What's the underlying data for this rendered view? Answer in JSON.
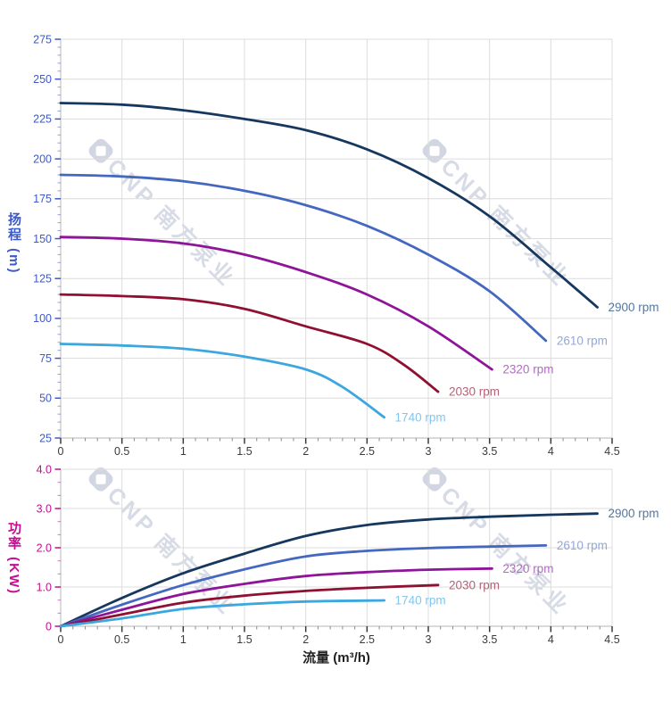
{
  "axis_titles": {
    "head_y": "扬程 (m)",
    "power_y": "功率 (KW)",
    "x": "流量 (m³/h)"
  },
  "watermark": {
    "text": "CNP 南方泵业"
  },
  "colors": {
    "grid": "#dcdcdc",
    "axis_line": "#c4c4c4",
    "x_tick": "#3a3a3a",
    "head_axis": "#3d5ac8",
    "power_axis": "#c30d92"
  },
  "chart_data": [
    {
      "type": "line",
      "ylabel": "扬程 (m)",
      "xlim": [
        0,
        4.5
      ],
      "ylim": [
        25,
        275
      ],
      "grid": true,
      "legend_position": "right-of-curve-end",
      "axis_color": "#3d5ac8",
      "x_minor_step": 0.1,
      "y_minor_step": 5,
      "x_ticks": {
        "values": [
          0,
          0.5,
          1,
          1.5,
          2,
          2.5,
          3,
          3.5,
          4,
          4.5
        ],
        "labels": [
          "0",
          "0.5",
          "1",
          "1.5",
          "2",
          "2.5",
          "3",
          "3.5",
          "4",
          "4.5"
        ]
      },
      "y_ticks": {
        "values": [
          25,
          50,
          75,
          100,
          125,
          150,
          175,
          200,
          225,
          250,
          275
        ],
        "labels": [
          "25",
          "50",
          "75",
          "100",
          "125",
          "150",
          "175",
          "200",
          "225",
          "250",
          "275"
        ]
      },
      "series": [
        {
          "name": "2900 rpm",
          "color": "#16375e",
          "label_color": "#53779f",
          "points": [
            [
              0,
              235
            ],
            [
              0.5,
              234
            ],
            [
              1,
              230.5
            ],
            [
              1.5,
              225
            ],
            [
              2,
              218
            ],
            [
              2.5,
              206
            ],
            [
              3,
              188
            ],
            [
              3.5,
              164
            ],
            [
              4,
              132
            ],
            [
              4.38,
              107
            ]
          ]
        },
        {
          "name": "2610 rpm",
          "color": "#4467bf",
          "label_color": "#92a7dd",
          "points": [
            [
              0,
              190
            ],
            [
              0.5,
              189
            ],
            [
              1,
              186
            ],
            [
              1.5,
              180
            ],
            [
              2,
              171
            ],
            [
              2.5,
              158
            ],
            [
              3,
              140
            ],
            [
              3.5,
              117
            ],
            [
              3.96,
              86
            ]
          ]
        },
        {
          "name": "2320 rpm",
          "color": "#8e1498",
          "label_color": "#b369c4",
          "points": [
            [
              0,
              151
            ],
            [
              0.5,
              150
            ],
            [
              1,
              147
            ],
            [
              1.5,
              140
            ],
            [
              2,
              129
            ],
            [
              2.5,
              115
            ],
            [
              3,
              95
            ],
            [
              3.52,
              68
            ]
          ]
        },
        {
          "name": "2030 rpm",
          "color": "#8f1030",
          "label_color": "#b26376",
          "points": [
            [
              0,
              115
            ],
            [
              0.5,
              114
            ],
            [
              1,
              112
            ],
            [
              1.5,
              106
            ],
            [
              2,
              95
            ],
            [
              2.5,
              84
            ],
            [
              2.8,
              71
            ],
            [
              3.08,
              54
            ]
          ]
        },
        {
          "name": "1740 rpm",
          "color": "#3ba7de",
          "label_color": "#82c6ee",
          "points": [
            [
              0,
              84
            ],
            [
              0.5,
              83
            ],
            [
              1,
              81
            ],
            [
              1.5,
              76
            ],
            [
              2,
              68
            ],
            [
              2.3,
              57
            ],
            [
              2.64,
              38
            ]
          ]
        }
      ]
    },
    {
      "type": "line",
      "ylabel": "功率 (KW)",
      "xlabel": "流量 (m³/h)",
      "xlim": [
        0,
        4.5
      ],
      "ylim": [
        0,
        4
      ],
      "grid": true,
      "legend_position": "right-of-curve-end",
      "axis_color": "#c30d92",
      "x_minor_step": 0.1,
      "y_minor_step": 0.3333,
      "x_ticks": {
        "values": [
          0,
          0.5,
          1,
          1.5,
          2,
          2.5,
          3,
          3.5,
          4,
          4.5
        ],
        "labels": [
          "0",
          "0.5",
          "1",
          "1.5",
          "2",
          "2.5",
          "3",
          "3.5",
          "4",
          "4.5"
        ]
      },
      "y_ticks": {
        "values": [
          0,
          1,
          2,
          3,
          4
        ],
        "labels": [
          "0",
          "1.0",
          "2.0",
          "3.0",
          "4.0"
        ]
      },
      "series": [
        {
          "name": "2900 rpm",
          "color": "#16375e",
          "label_color": "#53779f",
          "points": [
            [
              0,
              0
            ],
            [
              0.5,
              0.72
            ],
            [
              1,
              1.35
            ],
            [
              1.5,
              1.85
            ],
            [
              2,
              2.3
            ],
            [
              2.5,
              2.58
            ],
            [
              3,
              2.72
            ],
            [
              3.5,
              2.79
            ],
            [
              4,
              2.84
            ],
            [
              4.38,
              2.87
            ]
          ]
        },
        {
          "name": "2610 rpm",
          "color": "#4467bf",
          "label_color": "#92a7dd",
          "points": [
            [
              0,
              0
            ],
            [
              0.5,
              0.55
            ],
            [
              1,
              1.05
            ],
            [
              1.5,
              1.45
            ],
            [
              2,
              1.78
            ],
            [
              2.5,
              1.92
            ],
            [
              3,
              1.99
            ],
            [
              3.5,
              2.03
            ],
            [
              3.96,
              2.06
            ]
          ]
        },
        {
          "name": "2320 rpm",
          "color": "#8e1498",
          "label_color": "#b369c4",
          "points": [
            [
              0,
              0
            ],
            [
              0.5,
              0.42
            ],
            [
              1,
              0.82
            ],
            [
              1.5,
              1.08
            ],
            [
              2,
              1.28
            ],
            [
              2.5,
              1.38
            ],
            [
              3,
              1.44
            ],
            [
              3.52,
              1.47
            ]
          ]
        },
        {
          "name": "2030 rpm",
          "color": "#8f1030",
          "label_color": "#b26376",
          "points": [
            [
              0,
              0
            ],
            [
              0.5,
              0.3
            ],
            [
              1,
              0.6
            ],
            [
              1.5,
              0.78
            ],
            [
              2,
              0.9
            ],
            [
              2.5,
              0.98
            ],
            [
              3.08,
              1.05
            ]
          ]
        },
        {
          "name": "1740 rpm",
          "color": "#3ba7de",
          "label_color": "#82c6ee",
          "points": [
            [
              0,
              0
            ],
            [
              0.5,
              0.2
            ],
            [
              1,
              0.44
            ],
            [
              1.5,
              0.56
            ],
            [
              2,
              0.63
            ],
            [
              2.64,
              0.66
            ]
          ]
        }
      ]
    }
  ]
}
